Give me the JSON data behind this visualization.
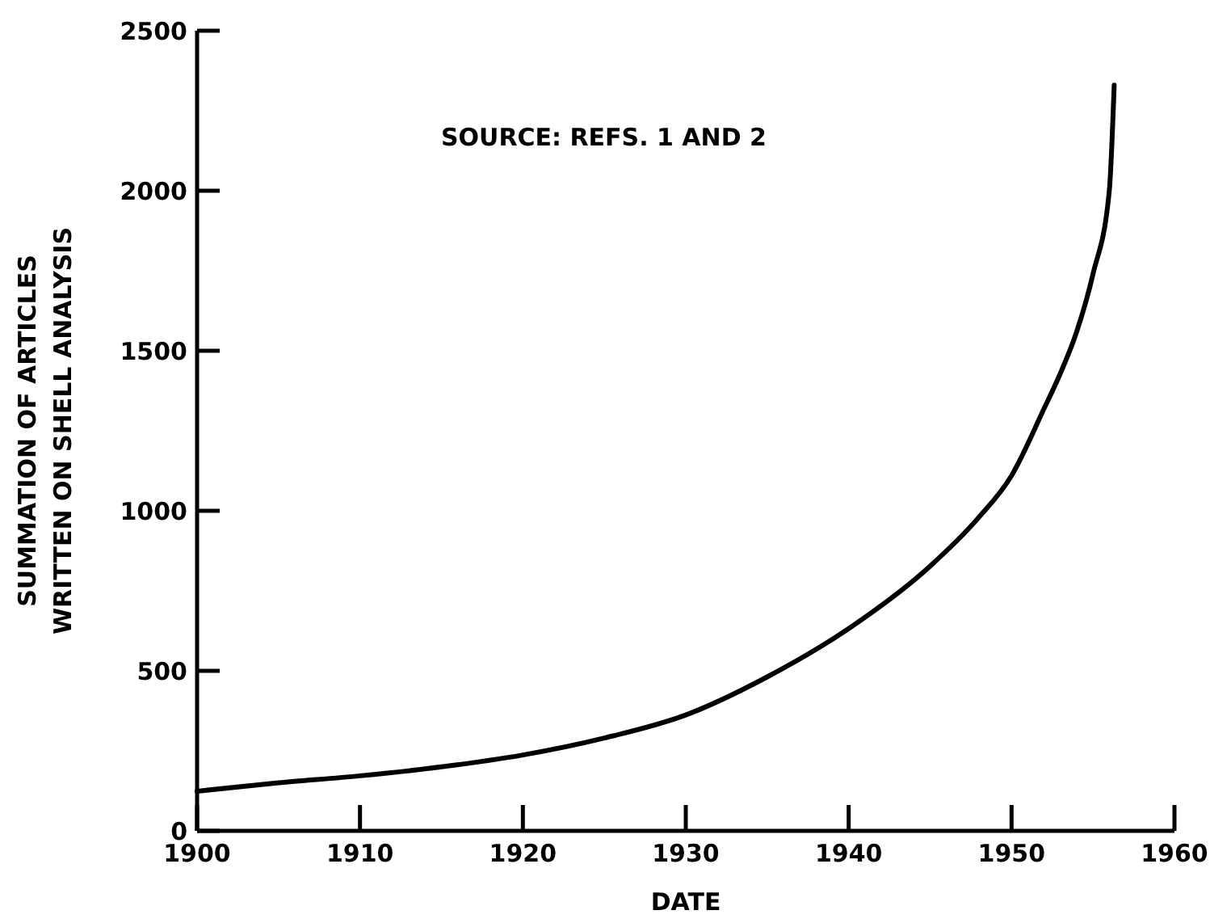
{
  "chart_data": {
    "type": "line",
    "xlabel": "DATE",
    "ylabel": "SUMMATION OF ARTICLES\nWRITTEN ON SHELL ANALYSIS",
    "annotations": [
      "SOURCE: REFS. 1 AND 2"
    ],
    "x": [
      1900,
      1905,
      1910,
      1915,
      1920,
      1925,
      1930,
      1935,
      1940,
      1945,
      1948,
      1950,
      1952,
      1953,
      1954,
      1955,
      1956,
      1956.3
    ],
    "series": [
      {
        "color": "#000000",
        "values": [
          124,
          150,
          172,
          200,
          237,
          290,
          362,
          481,
          632,
          827,
          980,
          1110,
          1320,
          1430,
          1560,
          1740,
          2000,
          2330
        ]
      }
    ],
    "xlim": [
      1900,
      1960
    ],
    "xticks": [
      1900,
      1910,
      1920,
      1930,
      1940,
      1950,
      1960
    ],
    "ylim": [
      0,
      2500
    ],
    "yticks": [
      0,
      500,
      1000,
      1500,
      2000,
      2500
    ],
    "marker": "none",
    "line_style": "solid"
  }
}
